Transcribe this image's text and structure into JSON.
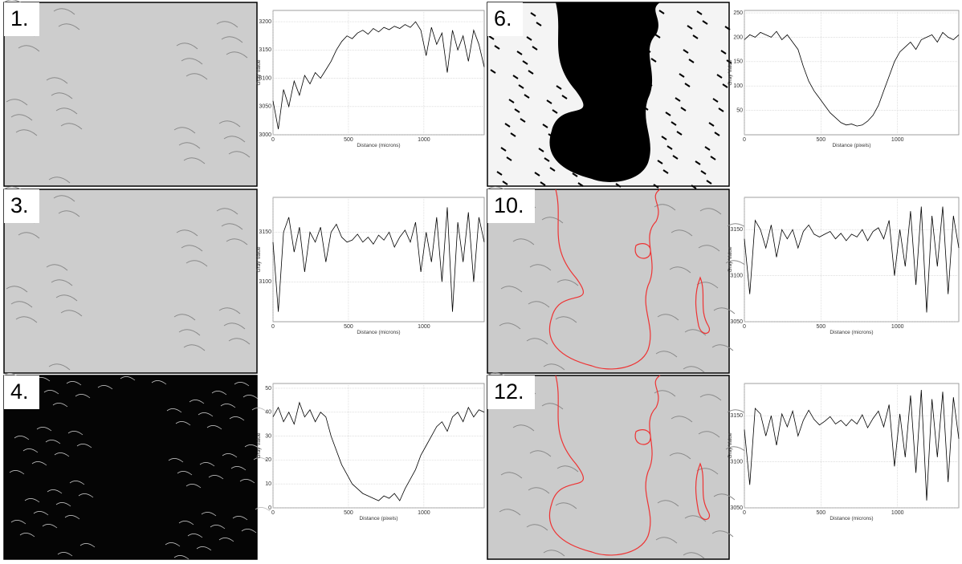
{
  "panels": [
    {
      "label": "1."
    },
    {
      "label": "6."
    },
    {
      "label": "3."
    },
    {
      "label": "10."
    },
    {
      "label": "4."
    },
    {
      "label": "12."
    }
  ],
  "chart_data": [
    {
      "type": "line",
      "xlabel": "Distance (microns)",
      "ylabel": "Gray Value",
      "color": "#000000",
      "grid": true,
      "xlim": [
        0,
        1400
      ],
      "xticks": [
        0,
        500,
        1000
      ],
      "ylim": [
        3000,
        3220
      ],
      "yticks": [
        3000,
        3050,
        3100,
        3150,
        3200
      ],
      "x": [
        0,
        35,
        70,
        105,
        140,
        175,
        210,
        245,
        280,
        315,
        350,
        385,
        420,
        455,
        490,
        525,
        560,
        595,
        630,
        665,
        700,
        735,
        770,
        805,
        840,
        875,
        910,
        945,
        980,
        1015,
        1050,
        1085,
        1120,
        1155,
        1190,
        1225,
        1260,
        1295,
        1330,
        1365,
        1400
      ],
      "values": [
        3060,
        3010,
        3080,
        3050,
        3095,
        3070,
        3105,
        3090,
        3110,
        3100,
        3115,
        3130,
        3150,
        3165,
        3175,
        3170,
        3180,
        3185,
        3178,
        3188,
        3182,
        3190,
        3186,
        3192,
        3188,
        3195,
        3190,
        3200,
        3185,
        3140,
        3190,
        3160,
        3180,
        3110,
        3185,
        3150,
        3175,
        3130,
        3185,
        3160,
        3120
      ]
    },
    {
      "type": "line",
      "xlabel": "Distance (pixels)",
      "ylabel": "Gray Value",
      "color": "#000000",
      "grid": true,
      "xlim": [
        0,
        1400
      ],
      "xticks": [
        0,
        500,
        1000
      ],
      "ylim": [
        0,
        255
      ],
      "yticks": [
        50,
        100,
        150,
        200,
        250
      ],
      "x": [
        0,
        35,
        70,
        105,
        140,
        175,
        210,
        245,
        280,
        315,
        350,
        385,
        420,
        455,
        490,
        525,
        560,
        595,
        630,
        665,
        700,
        735,
        770,
        805,
        840,
        875,
        910,
        945,
        980,
        1015,
        1050,
        1085,
        1120,
        1155,
        1190,
        1225,
        1260,
        1295,
        1330,
        1365,
        1400
      ],
      "values": [
        195,
        205,
        200,
        210,
        205,
        200,
        212,
        195,
        205,
        190,
        175,
        140,
        110,
        90,
        75,
        60,
        45,
        35,
        25,
        20,
        22,
        18,
        20,
        28,
        40,
        60,
        90,
        120,
        150,
        170,
        180,
        190,
        175,
        195,
        200,
        205,
        190,
        210,
        200,
        195,
        205
      ]
    },
    {
      "type": "line",
      "xlabel": "Distance (microns)",
      "ylabel": "Gray Value",
      "color": "#000000",
      "grid": true,
      "xlim": [
        0,
        1400
      ],
      "xticks": [
        0,
        500,
        1000
      ],
      "ylim": [
        3060,
        3185
      ],
      "yticks": [
        3100,
        3150
      ],
      "x": [
        0,
        35,
        70,
        105,
        140,
        175,
        210,
        245,
        280,
        315,
        350,
        385,
        420,
        455,
        490,
        525,
        560,
        595,
        630,
        665,
        700,
        735,
        770,
        805,
        840,
        875,
        910,
        945,
        980,
        1015,
        1050,
        1085,
        1120,
        1155,
        1190,
        1225,
        1260,
        1295,
        1330,
        1365,
        1400
      ],
      "values": [
        3140,
        3070,
        3150,
        3165,
        3130,
        3155,
        3110,
        3150,
        3140,
        3155,
        3120,
        3150,
        3158,
        3145,
        3140,
        3142,
        3148,
        3140,
        3145,
        3138,
        3147,
        3142,
        3150,
        3135,
        3145,
        3152,
        3140,
        3160,
        3110,
        3150,
        3120,
        3165,
        3100,
        3175,
        3070,
        3160,
        3120,
        3170,
        3100,
        3165,
        3140
      ]
    },
    {
      "type": "line",
      "xlabel": "Distance (microns)",
      "ylabel": "Gray Value",
      "color": "#000000",
      "grid": true,
      "xlim": [
        0,
        1400
      ],
      "xticks": [
        0,
        500,
        1000
      ],
      "ylim": [
        3050,
        3185
      ],
      "yticks": [
        3050,
        3100,
        3150
      ],
      "x": [
        0,
        35,
        70,
        105,
        140,
        175,
        210,
        245,
        280,
        315,
        350,
        385,
        420,
        455,
        490,
        525,
        560,
        595,
        630,
        665,
        700,
        735,
        770,
        805,
        840,
        875,
        910,
        945,
        980,
        1015,
        1050,
        1085,
        1120,
        1155,
        1190,
        1225,
        1260,
        1295,
        1330,
        1365,
        1400
      ],
      "values": [
        3140,
        3080,
        3160,
        3150,
        3130,
        3155,
        3120,
        3150,
        3140,
        3150,
        3130,
        3148,
        3155,
        3145,
        3142,
        3145,
        3148,
        3140,
        3146,
        3138,
        3145,
        3142,
        3150,
        3138,
        3148,
        3152,
        3140,
        3160,
        3100,
        3150,
        3110,
        3170,
        3090,
        3175,
        3060,
        3165,
        3110,
        3175,
        3080,
        3165,
        3130
      ]
    },
    {
      "type": "line",
      "xlabel": "Distance (pixels)",
      "ylabel": "Gray Value",
      "color": "#000000",
      "grid": true,
      "xlim": [
        0,
        1400
      ],
      "xticks": [
        0,
        500,
        1000
      ],
      "ylim": [
        0,
        52
      ],
      "yticks": [
        0,
        10,
        20,
        30,
        40,
        50
      ],
      "x": [
        0,
        35,
        70,
        105,
        140,
        175,
        210,
        245,
        280,
        315,
        350,
        385,
        420,
        455,
        490,
        525,
        560,
        595,
        630,
        665,
        700,
        735,
        770,
        805,
        840,
        875,
        910,
        945,
        980,
        1015,
        1050,
        1085,
        1120,
        1155,
        1190,
        1225,
        1260,
        1295,
        1330,
        1365,
        1400
      ],
      "values": [
        38,
        42,
        36,
        40,
        35,
        44,
        38,
        41,
        36,
        40,
        38,
        30,
        24,
        18,
        14,
        10,
        8,
        6,
        5,
        4,
        3,
        5,
        4,
        6,
        3,
        8,
        12,
        16,
        22,
        26,
        30,
        34,
        36,
        32,
        38,
        40,
        36,
        42,
        38,
        41,
        40
      ]
    },
    {
      "type": "line",
      "xlabel": "Distance (microns)",
      "ylabel": "Gray Value",
      "color": "#000000",
      "grid": true,
      "xlim": [
        0,
        1400
      ],
      "xticks": [
        0,
        500,
        1000
      ],
      "ylim": [
        3050,
        3185
      ],
      "yticks": [
        3050,
        3100,
        3150
      ],
      "x": [
        0,
        35,
        70,
        105,
        140,
        175,
        210,
        245,
        280,
        315,
        350,
        385,
        420,
        455,
        490,
        525,
        560,
        595,
        630,
        665,
        700,
        735,
        770,
        805,
        840,
        875,
        910,
        945,
        980,
        1015,
        1050,
        1085,
        1120,
        1155,
        1190,
        1225,
        1260,
        1295,
        1330,
        1365,
        1400
      ],
      "values": [
        3135,
        3075,
        3158,
        3152,
        3128,
        3150,
        3118,
        3152,
        3138,
        3155,
        3128,
        3145,
        3156,
        3146,
        3140,
        3144,
        3149,
        3141,
        3145,
        3139,
        3146,
        3141,
        3151,
        3137,
        3147,
        3155,
        3138,
        3162,
        3095,
        3152,
        3105,
        3172,
        3088,
        3178,
        3058,
        3168,
        3105,
        3176,
        3078,
        3170,
        3125
      ]
    }
  ]
}
